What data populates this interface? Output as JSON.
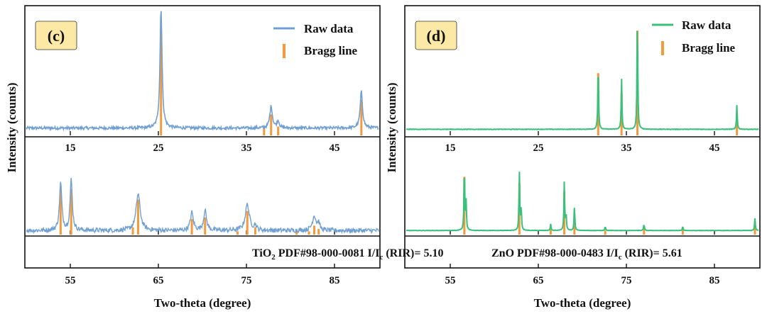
{
  "chart_data": [
    {
      "type": "line",
      "panel_label": "(c)",
      "color": "#6f9fd3",
      "label_bg": "#fce9a6",
      "legend": [
        "Raw data",
        "Bragg line"
      ],
      "ylabel": "Intensity (counts)",
      "xlabel": "Two-theta (degree)",
      "phase_name": "TiO",
      "phase_sub": "2",
      "pdf": "PDF#98-000-0081",
      "ric_prefix": "I/I",
      "ric_sub": "c",
      "ric_suffix": " (RIR)= 5.10",
      "top_row": {
        "xlim": [
          10,
          50
        ],
        "ticks": [
          15,
          25,
          35,
          45
        ],
        "tick_labels": [
          "15",
          "25",
          "35",
          "45"
        ],
        "baseline": 0.06,
        "noise": 0.012,
        "peaks": [
          [
            25.3,
            1.0,
            0.28
          ],
          [
            37.8,
            0.18,
            0.35
          ],
          [
            38.6,
            0.06,
            0.3
          ],
          [
            48.05,
            0.3,
            0.32
          ]
        ],
        "bragg": [
          [
            25.3,
            0.85
          ],
          [
            37.0,
            0.06
          ],
          [
            37.8,
            0.16
          ],
          [
            38.6,
            0.06
          ],
          [
            48.05,
            0.28
          ]
        ]
      },
      "bottom_row": {
        "xlim": [
          50,
          90
        ],
        "ticks": [
          55,
          65,
          75,
          85
        ],
        "tick_labels": [
          "55",
          "65",
          "75",
          "85"
        ],
        "baseline": 0.05,
        "noise": 0.028,
        "peaks": [
          [
            53.9,
            0.58,
            0.32
          ],
          [
            55.1,
            0.62,
            0.3
          ],
          [
            62.7,
            0.45,
            0.55
          ],
          [
            68.8,
            0.22,
            0.4
          ],
          [
            70.3,
            0.24,
            0.4
          ],
          [
            75.1,
            0.32,
            0.55
          ],
          [
            76.0,
            0.06,
            0.3
          ],
          [
            82.7,
            0.18,
            0.5
          ],
          [
            83.2,
            0.08,
            0.3
          ]
        ],
        "bragg": [
          [
            53.9,
            0.55
          ],
          [
            55.1,
            0.55
          ],
          [
            62.1,
            0.08
          ],
          [
            62.7,
            0.42
          ],
          [
            68.8,
            0.18
          ],
          [
            70.3,
            0.2
          ],
          [
            74.0,
            0.03
          ],
          [
            75.1,
            0.28
          ],
          [
            76.0,
            0.08
          ],
          [
            80.7,
            0.03
          ],
          [
            82.1,
            0.03
          ],
          [
            82.7,
            0.1
          ],
          [
            83.2,
            0.06
          ]
        ]
      }
    },
    {
      "type": "line",
      "panel_label": "(d)",
      "color": "#39c07a",
      "label_bg": "#fce9a6",
      "legend": [
        "Raw data",
        "Bragg line"
      ],
      "ylabel": "Intensity (counts)",
      "xlabel": "Two-theta (degree)",
      "phase_name": "ZnO",
      "phase_sub": "",
      "pdf": "PDF#98-000-0483",
      "ric_prefix": "I/I",
      "ric_sub": "c",
      "ric_suffix": " (RIR)= 5.61",
      "top_row": {
        "xlim": [
          10,
          50
        ],
        "ticks": [
          15,
          25,
          35,
          45
        ],
        "tick_labels": [
          "15",
          "25",
          "35",
          "45"
        ],
        "baseline": 0.05,
        "noise": 0.002,
        "peaks": [
          [
            31.8,
            0.56,
            0.1
          ],
          [
            34.45,
            0.42,
            0.1
          ],
          [
            36.25,
            0.95,
            0.1
          ],
          [
            47.55,
            0.2,
            0.1
          ]
        ],
        "bragg": [
          [
            31.8,
            0.5
          ],
          [
            34.45,
            0.34
          ],
          [
            36.25,
            0.85
          ],
          [
            47.55,
            0.17
          ]
        ]
      },
      "bottom_row": {
        "xlim": [
          50,
          90
        ],
        "ticks": [
          55,
          65,
          75,
          85
        ],
        "tick_labels": [
          "55",
          "65",
          "75",
          "85"
        ],
        "baseline": 0.05,
        "noise": 0.002,
        "peaks": [
          [
            56.6,
            0.82,
            0.1
          ],
          [
            56.8,
            0.35,
            0.1
          ],
          [
            62.85,
            0.72,
            0.1
          ],
          [
            63.05,
            0.28,
            0.1
          ],
          [
            66.4,
            0.08,
            0.1
          ],
          [
            67.95,
            0.6,
            0.1
          ],
          [
            68.15,
            0.2,
            0.1
          ],
          [
            69.1,
            0.3,
            0.1
          ],
          [
            72.6,
            0.05,
            0.1
          ],
          [
            77.0,
            0.08,
            0.1
          ],
          [
            81.4,
            0.05,
            0.1
          ],
          [
            89.6,
            0.15,
            0.1
          ]
        ],
        "bragg": [
          [
            56.6,
            0.7
          ],
          [
            62.85,
            0.62
          ],
          [
            66.4,
            0.06
          ],
          [
            67.95,
            0.52
          ],
          [
            69.1,
            0.24
          ],
          [
            72.6,
            0.04
          ],
          [
            77.0,
            0.07
          ],
          [
            81.4,
            0.05
          ],
          [
            89.6,
            0.15
          ]
        ]
      }
    }
  ]
}
